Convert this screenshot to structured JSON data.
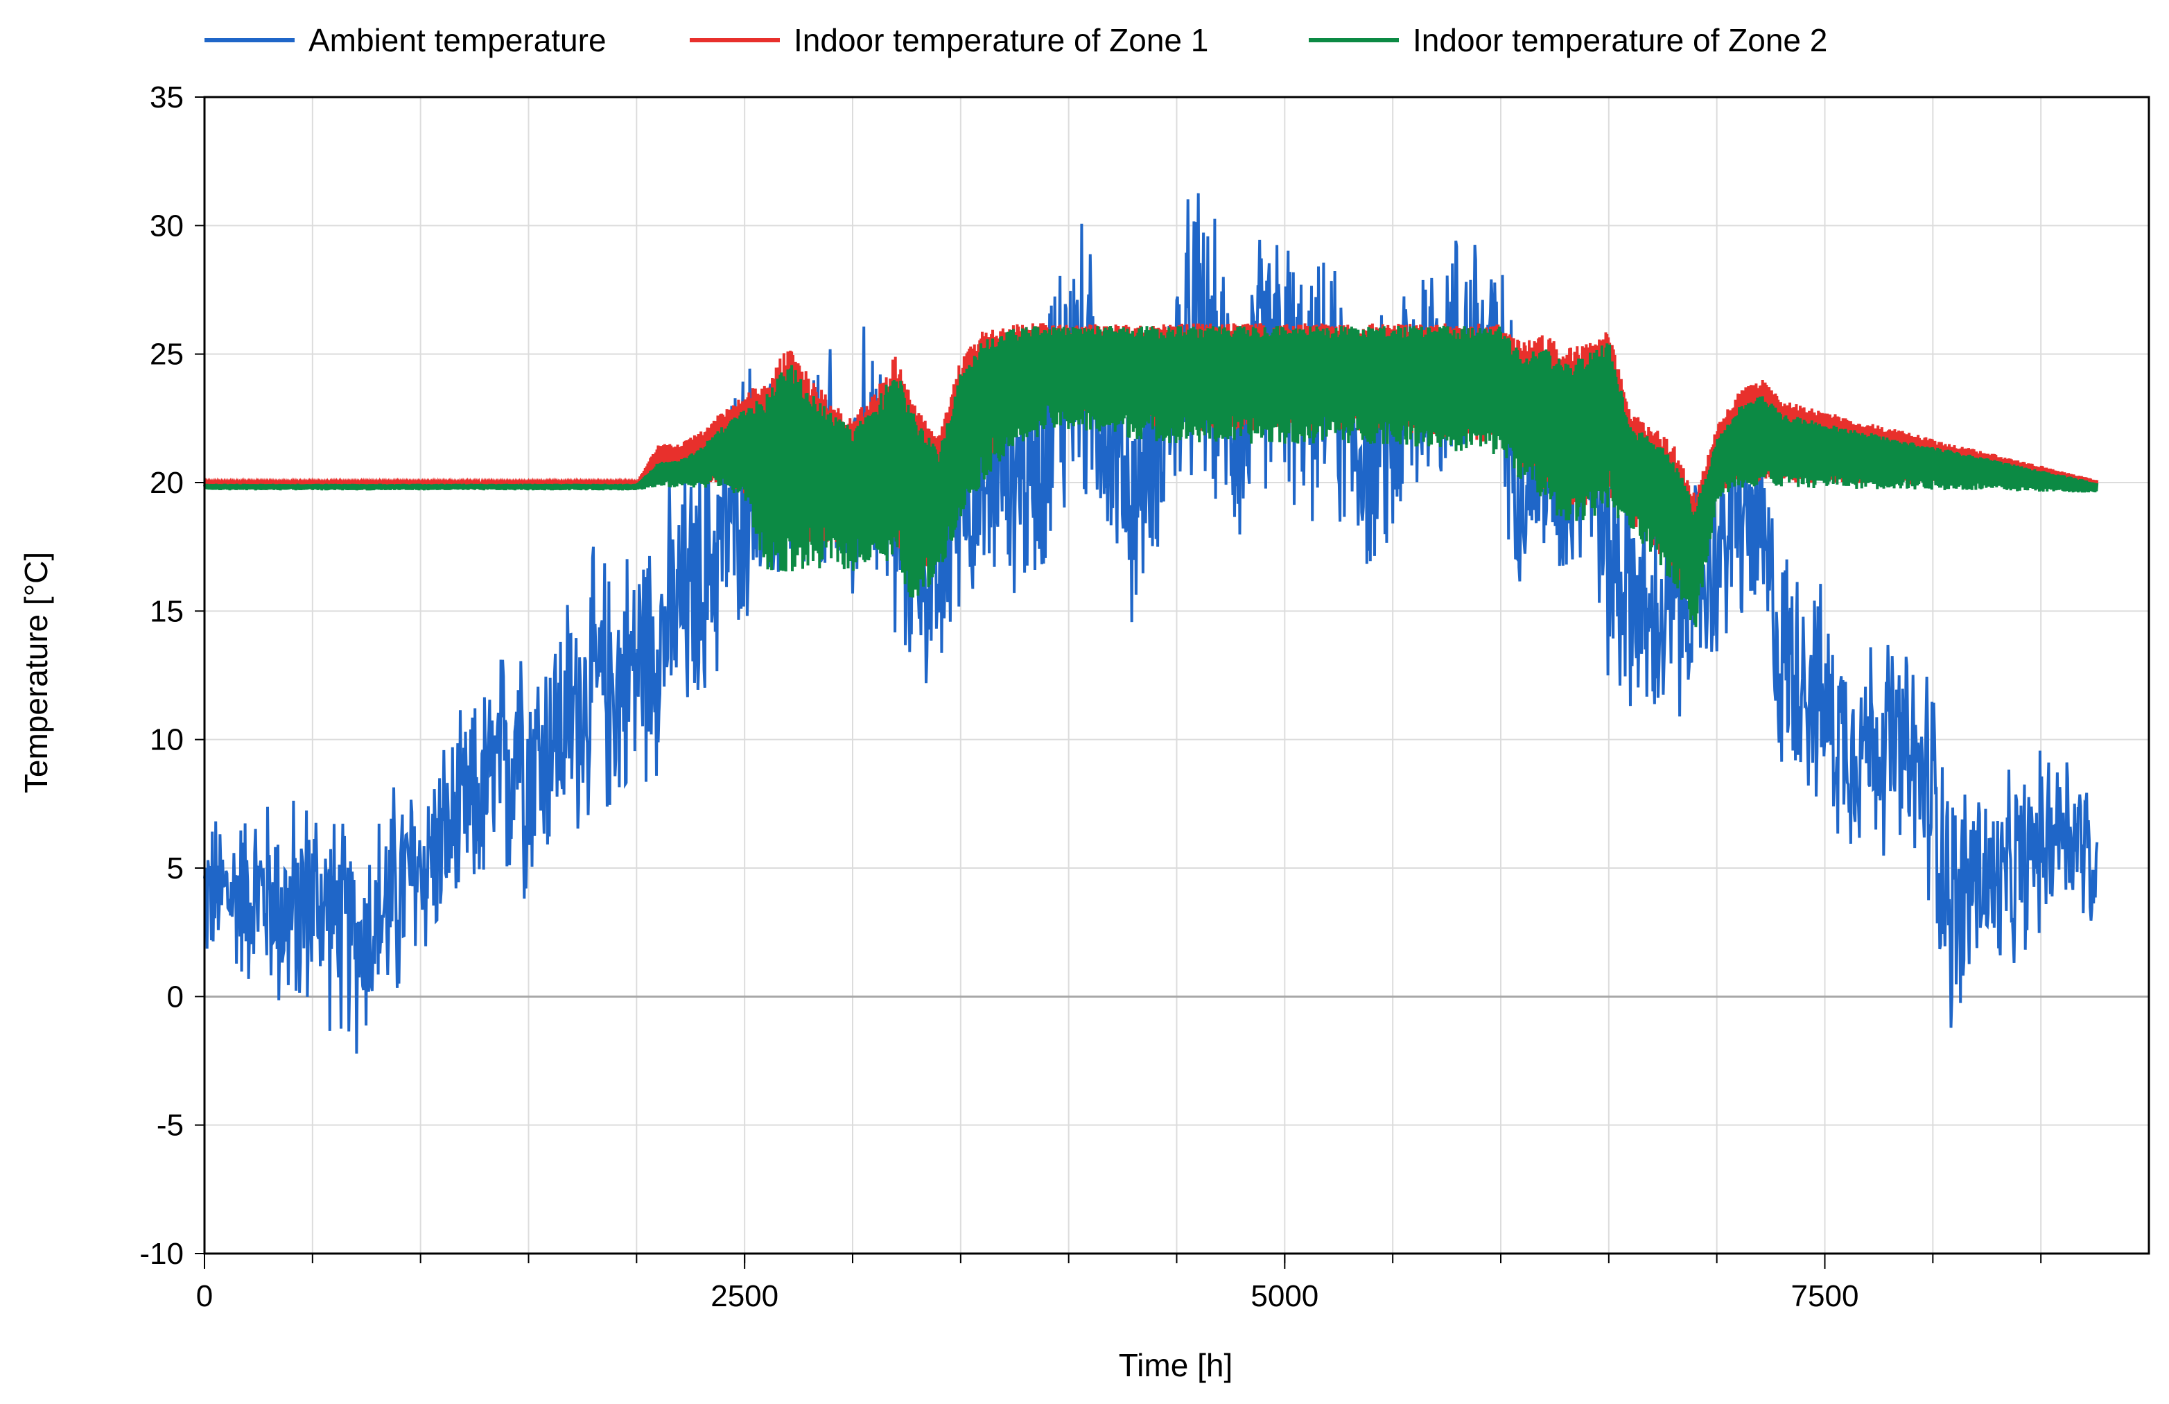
{
  "chart_data": {
    "type": "line",
    "title": "",
    "xlabel": "Time [h]",
    "ylabel": "Temperature [°C]",
    "xlim": [
      0,
      9000
    ],
    "ylim": [
      -10,
      35
    ],
    "xticks": [
      0,
      2500,
      5000,
      7500
    ],
    "yticks": [
      -10,
      -5,
      0,
      5,
      10,
      15,
      20,
      25,
      30,
      35
    ],
    "grid": true,
    "legend_position": "top",
    "series": [
      {
        "name": "Ambient temperature",
        "color": "#1f66c8",
        "x": [
          0,
          150,
          300,
          400,
          500,
          600,
          700,
          800,
          900,
          1000,
          1100,
          1200,
          1300,
          1400,
          1450,
          1500,
          1600,
          1700,
          1800,
          1900,
          2000,
          2100,
          2200,
          2300,
          2400,
          2500,
          2600,
          2700,
          2800,
          2900,
          3000,
          3100,
          3200,
          3300,
          3400,
          3500,
          3600,
          3700,
          3800,
          3900,
          4000,
          4100,
          4200,
          4300,
          4400,
          4500,
          4600,
          4700,
          4800,
          4900,
          5000,
          5100,
          5200,
          5300,
          5400,
          5500,
          5600,
          5700,
          5800,
          5900,
          6000,
          6100,
          6200,
          6300,
          6400,
          6500,
          6600,
          6700,
          6800,
          6900,
          7000,
          7100,
          7200,
          7300,
          7400,
          7500,
          7600,
          7700,
          7800,
          7900,
          8000,
          8100,
          8200,
          8300,
          8400,
          8500,
          8600,
          8700,
          8760
        ],
        "mid": [
          4,
          4,
          4,
          3,
          4,
          3,
          2,
          3,
          4,
          5,
          6,
          7,
          8,
          9,
          11,
          9,
          10,
          11,
          12,
          12,
          13,
          14,
          15,
          16,
          18,
          20,
          19,
          21,
          20,
          20,
          19,
          22,
          18,
          17,
          16,
          20,
          19,
          21,
          20,
          22,
          25,
          24,
          22,
          19,
          22,
          24,
          26,
          24,
          22,
          25,
          25,
          23,
          24,
          22,
          21,
          22,
          24,
          25,
          25,
          26,
          24,
          20,
          21,
          20,
          22,
          17,
          16,
          14,
          15,
          16,
          17,
          19,
          18,
          13,
          13,
          11,
          10,
          10,
          10,
          9,
          8,
          3,
          5,
          4,
          5,
          6,
          7,
          6,
          4
        ],
        "amp": [
          3.5,
          4,
          4.5,
          5.5,
          5,
          5,
          5,
          5,
          5.5,
          4.5,
          4.5,
          4.5,
          5,
          6,
          8,
          6,
          5.5,
          6,
          6,
          6,
          6,
          6,
          6,
          6,
          6,
          6,
          5.5,
          6,
          5.5,
          6,
          6,
          6.5,
          6,
          5,
          5.5,
          5,
          5,
          5.5,
          5.5,
          6.5,
          7.5,
          6,
          6,
          5.5,
          5.5,
          6.5,
          7,
          6,
          6,
          6,
          6.5,
          5.5,
          5.5,
          6,
          5.5,
          6,
          7,
          6.5,
          6,
          5.5,
          5.5,
          5,
          5.5,
          5,
          5,
          6,
          6,
          5,
          5.5,
          5.5,
          5,
          5.5,
          5.5,
          5.5,
          5.5,
          5,
          5,
          5,
          5,
          5,
          6,
          6,
          5,
          4.5,
          4.5,
          4,
          4,
          4,
          3
        ]
      },
      {
        "name": "Indoor temperature of Zone 1",
        "color": "#e8302c",
        "x": [
          0,
          2000,
          2100,
          2200,
          2300,
          2400,
          2500,
          2600,
          2700,
          2800,
          2900,
          3000,
          3100,
          3200,
          3300,
          3400,
          3500,
          3600,
          3700,
          3800,
          3900,
          4000,
          4500,
          5000,
          5500,
          6000,
          6100,
          6200,
          6300,
          6400,
          6500,
          6600,
          6700,
          6800,
          6900,
          7000,
          7100,
          7200,
          7300,
          8760
        ],
        "upper": [
          20,
          20,
          21.5,
          21.5,
          22,
          22.8,
          23.5,
          24,
          25.3,
          24.2,
          23.2,
          22.6,
          23.5,
          25,
          22.8,
          21.8,
          24.8,
          25.9,
          26.1,
          26.2,
          26.2,
          26.2,
          26.2,
          26.2,
          26.2,
          26.2,
          25.5,
          25.8,
          25.2,
          25.5,
          25.9,
          22.8,
          22.2,
          21.5,
          19.5,
          22.2,
          23.5,
          24.2,
          23.2,
          20.1
        ],
        "lower": [
          19.9,
          19.9,
          20,
          20,
          20,
          20,
          19.5,
          18.5,
          18,
          17.5,
          17.5,
          17.5,
          18.5,
          17.5,
          16,
          17.5,
          19,
          20.5,
          21.5,
          22,
          23,
          22.5,
          22,
          22,
          22,
          21.5,
          20.5,
          19.5,
          19,
          19,
          19.5,
          18.5,
          17.5,
          16.5,
          15.5,
          19.5,
          20,
          20,
          20,
          19.8
        ]
      },
      {
        "name": "Indoor temperature of Zone 2",
        "color": "#0c8a44",
        "x": [
          0,
          2000,
          2100,
          2200,
          2300,
          2400,
          2500,
          2600,
          2700,
          2800,
          2900,
          3000,
          3100,
          3200,
          3300,
          3400,
          3500,
          3600,
          3700,
          3800,
          3900,
          4000,
          4500,
          5000,
          5500,
          6000,
          6100,
          6200,
          6300,
          6400,
          6500,
          6600,
          6700,
          6800,
          6900,
          7000,
          7100,
          7200,
          7300,
          8760
        ],
        "upper": [
          19.95,
          19.95,
          20.8,
          20.9,
          21.4,
          22.2,
          22.9,
          23.5,
          24.8,
          23.7,
          22.7,
          22.1,
          23,
          24.5,
          22.3,
          21.3,
          24.3,
          25.5,
          25.9,
          26.1,
          26.1,
          26.1,
          26.1,
          26.1,
          26.1,
          26.1,
          25,
          25.3,
          24.7,
          25,
          25.5,
          22.3,
          21.7,
          21,
          19,
          21.7,
          23,
          23.6,
          22.7,
          20
        ],
        "lower": [
          19.7,
          19.7,
          19.8,
          19.8,
          19.8,
          19.8,
          19.2,
          16.5,
          16.5,
          16.5,
          16.8,
          16.5,
          17,
          16.5,
          15,
          16.5,
          18.5,
          20,
          21,
          21.5,
          22,
          22,
          21.5,
          21.5,
          21.5,
          21,
          20,
          19,
          18.5,
          18.5,
          19,
          18,
          17,
          16,
          14.2,
          19.3,
          19.8,
          19.8,
          19.8,
          19.6
        ]
      }
    ]
  }
}
